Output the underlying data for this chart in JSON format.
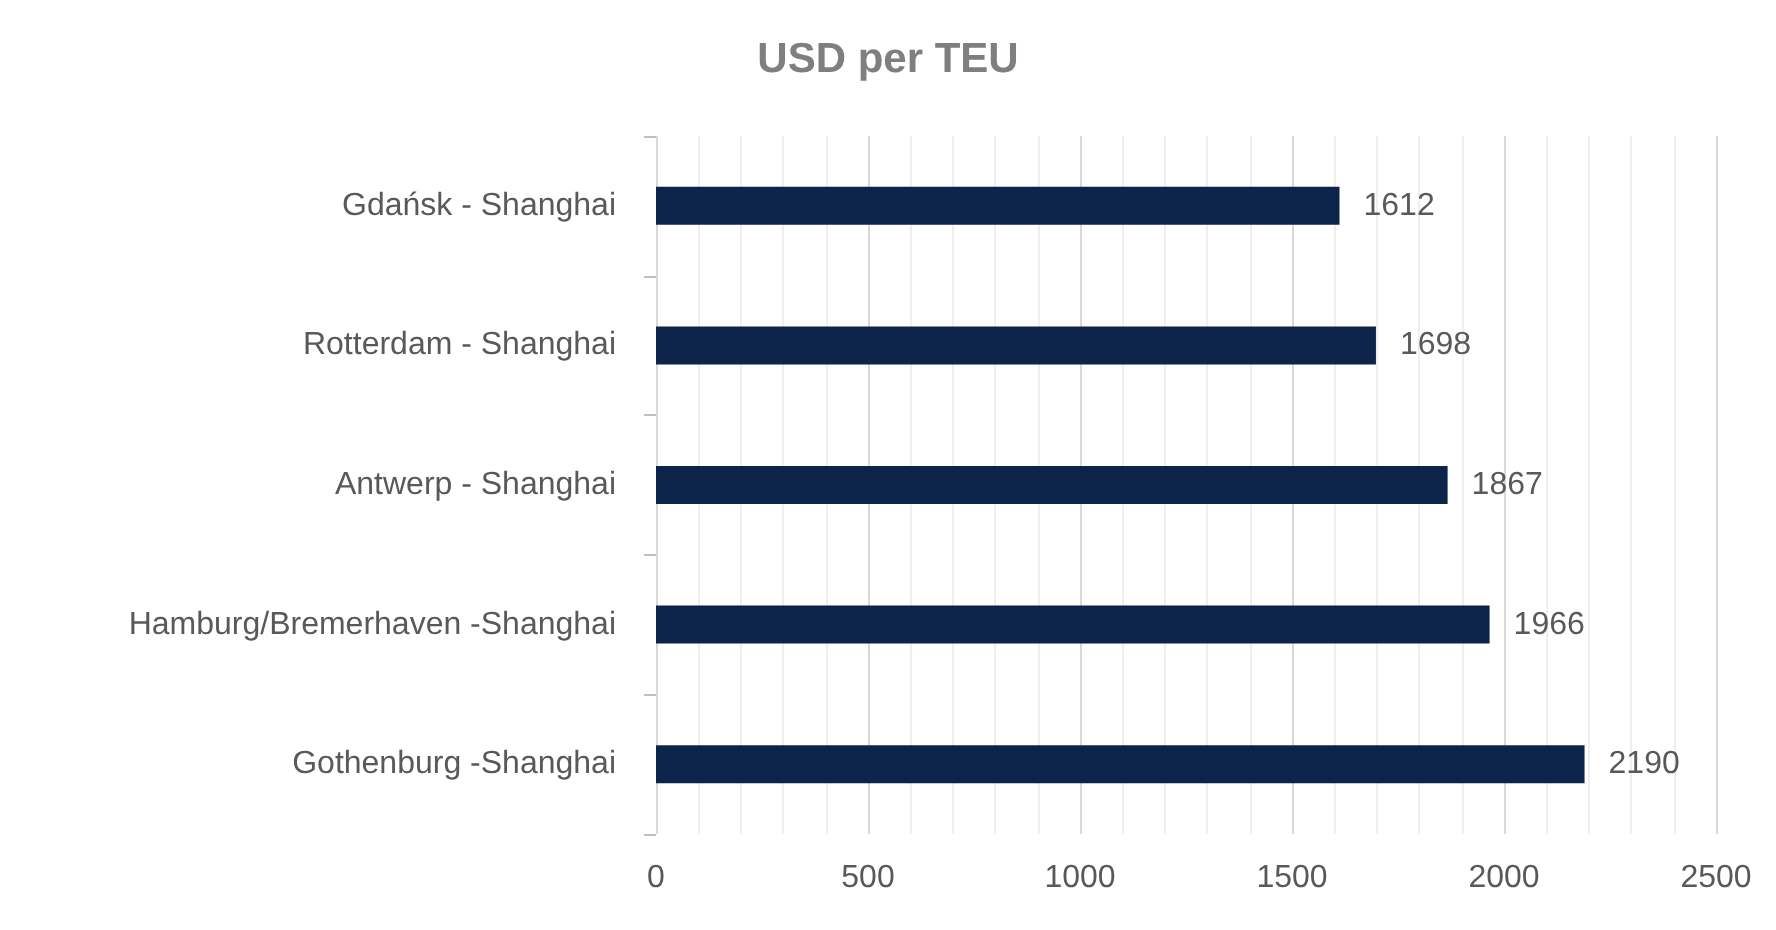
{
  "chart_data": {
    "type": "bar",
    "orientation": "horizontal",
    "title": "USD per TEU",
    "categories": [
      "Gdańsk - Shanghai",
      "Rotterdam - Shanghai",
      "Antwerp - Shanghai",
      "Hamburg/Bremerhaven -Shanghai",
      "Gothenburg -Shanghai"
    ],
    "values": [
      1612,
      1698,
      1867,
      1966,
      2190
    ],
    "color": "#0c2449",
    "xlim": [
      0,
      2500
    ],
    "xticks": [
      0,
      500,
      1000,
      1500,
      2000,
      2500
    ],
    "grid": "x",
    "data_labels": true
  }
}
